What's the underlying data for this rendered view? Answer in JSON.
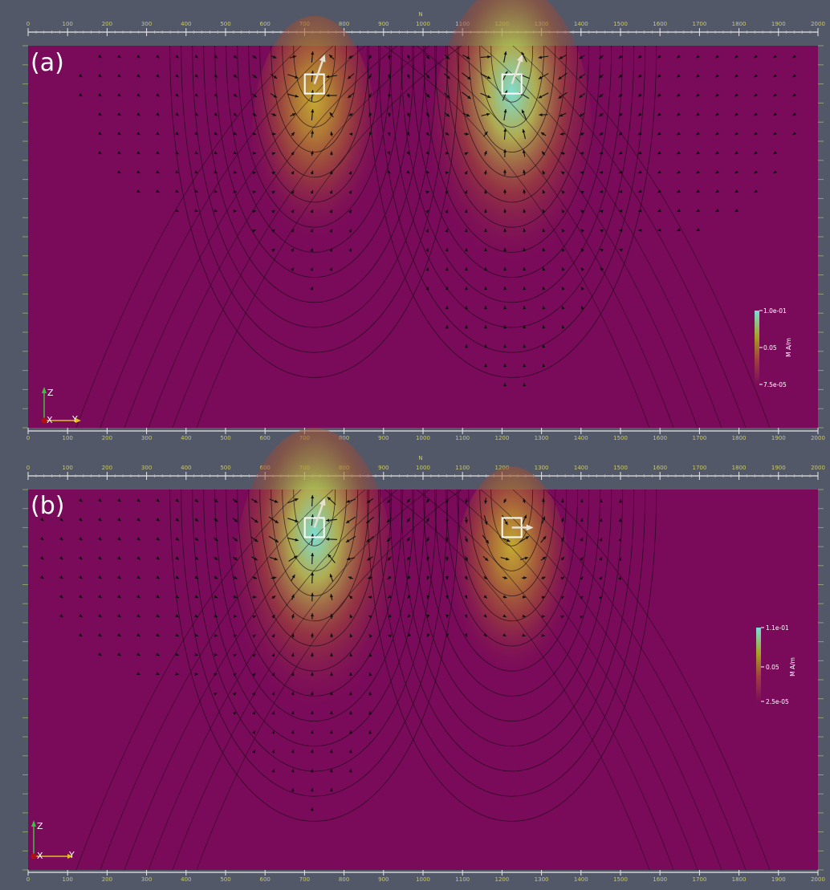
{
  "chart_data": [
    {
      "type": "heatmap",
      "panel_label": "(a)",
      "x_axis_title": "N",
      "x_ticks": [
        "0",
        "100",
        "200",
        "300",
        "400",
        "500",
        "600",
        "700",
        "800",
        "900",
        "1000",
        "1100",
        "1200",
        "1300",
        "1400",
        "1500",
        "1600",
        "1700",
        "1800",
        "1900",
        "2000"
      ],
      "xlim": [
        0,
        2000
      ],
      "colorbar": {
        "title": "M A/m",
        "max_label": "1.0e-01",
        "mid_label": "0.05",
        "min_label": "7.5e-05",
        "range": [
          7.5e-05,
          0.1
        ],
        "colors": [
          "#7a0a5a",
          "#a04040",
          "#a8a020",
          "#78e0d8"
        ]
      },
      "sources": [
        {
          "x": 725,
          "depth": 100,
          "peak": 0.045,
          "arrow": "up"
        },
        {
          "x": 1225,
          "depth": 100,
          "peak": 0.1,
          "arrow": "up"
        }
      ],
      "orientation_axes": {
        "vertical": "Z",
        "left": "X",
        "right": "Y"
      }
    },
    {
      "type": "heatmap",
      "panel_label": "(b)",
      "x_axis_title": "N",
      "x_ticks": [
        "0",
        "100",
        "200",
        "300",
        "400",
        "500",
        "600",
        "700",
        "800",
        "900",
        "1000",
        "1100",
        "1200",
        "1300",
        "1400",
        "1500",
        "1600",
        "1700",
        "1800",
        "1900",
        "2000"
      ],
      "xlim": [
        0,
        2000
      ],
      "colorbar": {
        "title": "M A/m",
        "max_label": "1.1e-01",
        "mid_label": "0.05",
        "min_label": "2.5e-05",
        "range": [
          2.5e-05,
          0.11
        ],
        "colors": [
          "#7a0a5a",
          "#a04040",
          "#a8a020",
          "#78e0d8"
        ]
      },
      "sources": [
        {
          "x": 725,
          "depth": 100,
          "peak": 0.11,
          "arrow": "up"
        },
        {
          "x": 1225,
          "depth": 100,
          "peak": 0.035,
          "arrow": "right"
        }
      ],
      "orientation_axes": {
        "vertical": "Z",
        "left": "X",
        "right": "Y"
      }
    }
  ]
}
